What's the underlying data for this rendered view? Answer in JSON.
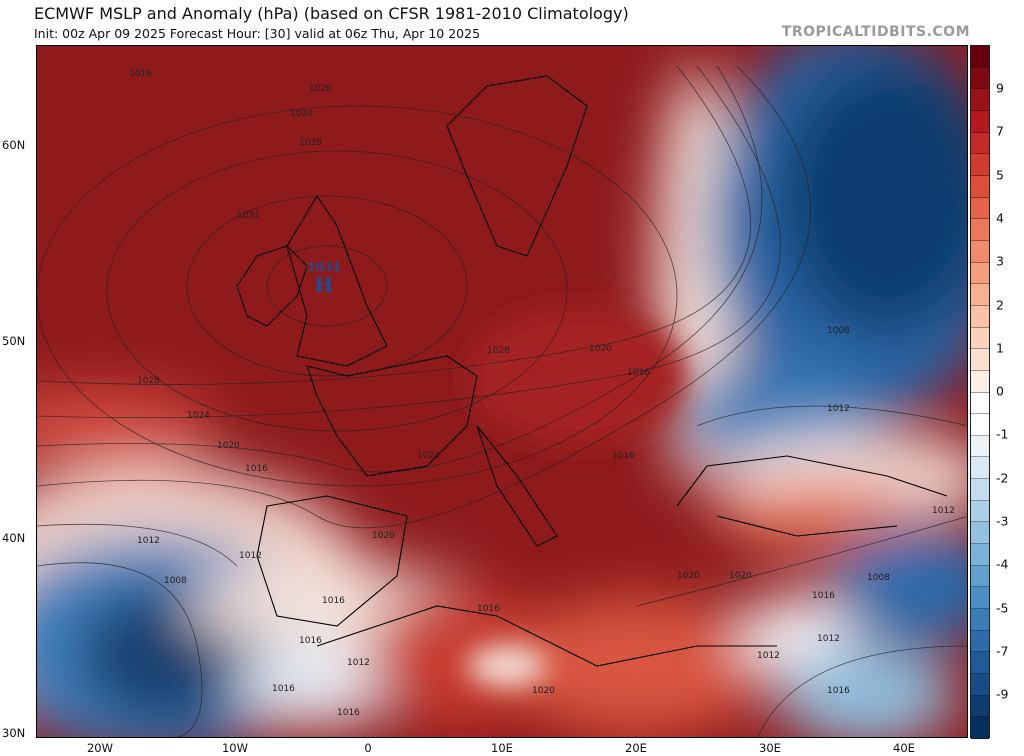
{
  "header": {
    "title": "ECMWF MSLP and Anomaly (hPa) (based on CFSR 1981-2010 Climatology)",
    "subtitle": "Init: 00z Apr 09 2025   Forecast Hour: [30]   valid at 06z Thu, Apr 10 2025",
    "brand": "TROPICALTIDBITS.COM"
  },
  "map": {
    "lat_labels": [
      "60N",
      "50N",
      "40N",
      "30N"
    ],
    "lon_labels": [
      "20W",
      "10W",
      "0",
      "10E",
      "20E",
      "30E",
      "40E"
    ],
    "high": {
      "value": "1034",
      "symbol": "H"
    },
    "isobar_labels": [
      "1016",
      "1020",
      "1024",
      "1028",
      "1032",
      "1028",
      "1024",
      "1020",
      "1016",
      "1012",
      "1012",
      "1008",
      "1016",
      "1016",
      "1012",
      "1016",
      "1020",
      "1024",
      "1028",
      "1020",
      "1016",
      "1016",
      "1020",
      "1012",
      "1008",
      "1012",
      "1016",
      "1008",
      "1012",
      "1016",
      "1020",
      "1020",
      "1016",
      "1016",
      "1012"
    ]
  },
  "colorbar": {
    "labels": [
      "9",
      "7",
      "5",
      "4",
      "3",
      "2",
      "1",
      "0",
      "-1",
      "-2",
      "-3",
      "-4",
      "-5",
      "-7",
      "-9"
    ],
    "colors": [
      "#67000d",
      "#7f0a12",
      "#99121a",
      "#b11b20",
      "#c42b28",
      "#d23b30",
      "#dc4f3b",
      "#e4634a",
      "#eb785a",
      "#f08b6b",
      "#f49e7e",
      "#f7b092",
      "#f9c2a7",
      "#fad1bb",
      "#fbe0d1",
      "#fcefe6",
      "#ffffff",
      "#ffffff",
      "#ebf2f8",
      "#d9e8f3",
      "#c4dcee",
      "#add0e7",
      "#94c1df",
      "#7ab1d6",
      "#61a0cd",
      "#4a8ec3",
      "#3a7cb8",
      "#2c6aaa",
      "#215a98",
      "#174b86",
      "#0f3d72",
      "#08305e"
    ]
  }
}
